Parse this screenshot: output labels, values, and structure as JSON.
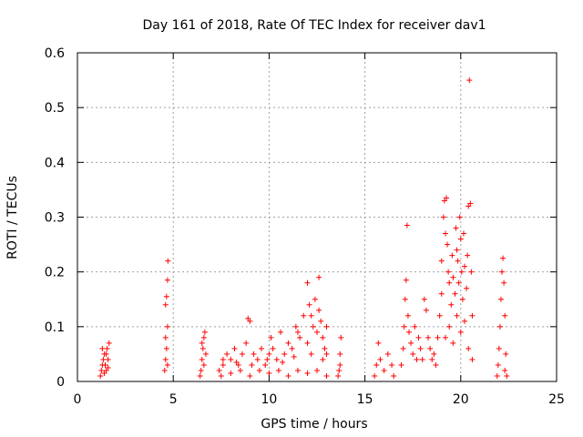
{
  "chart_data": {
    "type": "scatter",
    "title": "Day 161 of 2018, Rate Of TEC Index for receiver dav1",
    "xlabel": "GPS time / hours",
    "ylabel": "ROTI / TECUs",
    "xlim": [
      0,
      25
    ],
    "ylim": [
      0,
      0.6
    ],
    "xticks": [
      0,
      5,
      10,
      15,
      20,
      25
    ],
    "xtick_labels": [
      "0",
      "5",
      "10",
      "15",
      "20",
      "25"
    ],
    "yticks": [
      0,
      0.1,
      0.2,
      0.3,
      0.4,
      0.5,
      0.6
    ],
    "ytick_labels": [
      "0",
      "0.1",
      "0.2",
      "0.3",
      "0.4",
      "0.5",
      "0.6"
    ],
    "grid": true,
    "marker": "+",
    "color": "#ff0000",
    "series": [
      {
        "name": "ROTI",
        "points": [
          [
            1.2,
            0.01
          ],
          [
            1.25,
            0.02
          ],
          [
            1.3,
            0.03
          ],
          [
            1.35,
            0.04
          ],
          [
            1.4,
            0.05
          ],
          [
            1.45,
            0.03
          ],
          [
            1.5,
            0.02
          ],
          [
            1.55,
            0.06
          ],
          [
            1.6,
            0.04
          ],
          [
            1.65,
            0.07
          ],
          [
            1.3,
            0.06
          ],
          [
            1.5,
            0.05
          ],
          [
            1.4,
            0.015
          ],
          [
            1.6,
            0.025
          ],
          [
            4.55,
            0.02
          ],
          [
            4.6,
            0.04
          ],
          [
            4.65,
            0.06
          ],
          [
            4.7,
            0.1
          ],
          [
            4.6,
            0.14
          ],
          [
            4.65,
            0.155
          ],
          [
            4.7,
            0.185
          ],
          [
            4.72,
            0.22
          ],
          [
            4.6,
            0.08
          ],
          [
            4.7,
            0.03
          ],
          [
            6.4,
            0.01
          ],
          [
            6.45,
            0.02
          ],
          [
            6.5,
            0.04
          ],
          [
            6.55,
            0.06
          ],
          [
            6.6,
            0.08
          ],
          [
            6.65,
            0.09
          ],
          [
            6.7,
            0.05
          ],
          [
            6.6,
            0.03
          ],
          [
            6.5,
            0.07
          ],
          [
            7.4,
            0.02
          ],
          [
            7.6,
            0.03
          ],
          [
            7.8,
            0.05
          ],
          [
            8.0,
            0.04
          ],
          [
            8.2,
            0.06
          ],
          [
            8.4,
            0.03
          ],
          [
            8.6,
            0.05
          ],
          [
            8.8,
            0.07
          ],
          [
            8.9,
            0.115
          ],
          [
            9.0,
            0.11
          ],
          [
            9.2,
            0.05
          ],
          [
            9.4,
            0.04
          ],
          [
            9.6,
            0.06
          ],
          [
            9.8,
            0.03
          ],
          [
            10.0,
            0.05
          ],
          [
            10.1,
            0.08
          ],
          [
            10.2,
            0.06
          ],
          [
            10.4,
            0.04
          ],
          [
            10.6,
            0.09
          ],
          [
            10.8,
            0.05
          ],
          [
            11.0,
            0.07
          ],
          [
            11.2,
            0.06
          ],
          [
            11.4,
            0.1
          ],
          [
            11.5,
            0.09
          ],
          [
            11.6,
            0.08
          ],
          [
            11.8,
            0.12
          ],
          [
            12.0,
            0.07
          ],
          [
            12.0,
            0.18
          ],
          [
            12.1,
            0.14
          ],
          [
            12.2,
            0.12
          ],
          [
            12.3,
            0.1
          ],
          [
            12.4,
            0.15
          ],
          [
            12.5,
            0.09
          ],
          [
            12.6,
            0.13
          ],
          [
            12.6,
            0.19
          ],
          [
            12.7,
            0.11
          ],
          [
            12.8,
            0.08
          ],
          [
            12.9,
            0.06
          ],
          [
            13.0,
            0.05
          ],
          [
            13.0,
            0.1
          ],
          [
            7.5,
            0.01
          ],
          [
            8.0,
            0.015
          ],
          [
            8.5,
            0.02
          ],
          [
            9.0,
            0.01
          ],
          [
            9.5,
            0.02
          ],
          [
            10.0,
            0.015
          ],
          [
            10.5,
            0.02
          ],
          [
            11.0,
            0.01
          ],
          [
            11.5,
            0.02
          ],
          [
            12.0,
            0.015
          ],
          [
            12.5,
            0.02
          ],
          [
            13.0,
            0.01
          ],
          [
            7.6,
            0.04
          ],
          [
            8.3,
            0.035
          ],
          [
            9.1,
            0.03
          ],
          [
            9.9,
            0.04
          ],
          [
            10.7,
            0.035
          ],
          [
            11.3,
            0.045
          ],
          [
            12.2,
            0.05
          ],
          [
            12.8,
            0.04
          ],
          [
            13.6,
            0.01
          ],
          [
            13.65,
            0.02
          ],
          [
            13.7,
            0.03
          ],
          [
            13.75,
            0.08
          ],
          [
            13.7,
            0.05
          ],
          [
            15.5,
            0.01
          ],
          [
            15.6,
            0.03
          ],
          [
            15.7,
            0.07
          ],
          [
            15.8,
            0.04
          ],
          [
            16.0,
            0.02
          ],
          [
            16.2,
            0.05
          ],
          [
            16.4,
            0.03
          ],
          [
            16.5,
            0.01
          ],
          [
            16.9,
            0.03
          ],
          [
            17.0,
            0.06
          ],
          [
            17.05,
            0.1
          ],
          [
            17.1,
            0.15
          ],
          [
            17.15,
            0.185
          ],
          [
            17.2,
            0.285
          ],
          [
            17.25,
            0.12
          ],
          [
            17.3,
            0.09
          ],
          [
            17.4,
            0.07
          ],
          [
            17.5,
            0.05
          ],
          [
            17.6,
            0.1
          ],
          [
            17.7,
            0.04
          ],
          [
            17.8,
            0.08
          ],
          [
            17.9,
            0.06
          ],
          [
            18.0,
            0.04
          ],
          [
            18.1,
            0.15
          ],
          [
            18.2,
            0.13
          ],
          [
            18.3,
            0.08
          ],
          [
            18.4,
            0.06
          ],
          [
            18.5,
            0.04
          ],
          [
            18.6,
            0.05
          ],
          [
            18.7,
            0.03
          ],
          [
            18.8,
            0.08
          ],
          [
            18.9,
            0.12
          ],
          [
            19.0,
            0.16
          ],
          [
            19.0,
            0.22
          ],
          [
            19.1,
            0.3
          ],
          [
            19.15,
            0.33
          ],
          [
            19.2,
            0.27
          ],
          [
            19.25,
            0.335
          ],
          [
            19.3,
            0.25
          ],
          [
            19.35,
            0.2
          ],
          [
            19.4,
            0.18
          ],
          [
            19.5,
            0.14
          ],
          [
            19.55,
            0.23
          ],
          [
            19.6,
            0.19
          ],
          [
            19.7,
            0.16
          ],
          [
            19.75,
            0.28
          ],
          [
            19.8,
            0.24
          ],
          [
            19.85,
            0.22
          ],
          [
            19.9,
            0.18
          ],
          [
            19.95,
            0.3
          ],
          [
            20.0,
            0.26
          ],
          [
            20.05,
            0.2
          ],
          [
            20.1,
            0.15
          ],
          [
            20.15,
            0.27
          ],
          [
            20.2,
            0.21
          ],
          [
            20.3,
            0.17
          ],
          [
            20.35,
            0.23
          ],
          [
            20.4,
            0.32
          ],
          [
            20.45,
            0.55
          ],
          [
            20.5,
            0.325
          ],
          [
            20.55,
            0.2
          ],
          [
            20.6,
            0.12
          ],
          [
            19.2,
            0.08
          ],
          [
            19.4,
            0.1
          ],
          [
            19.6,
            0.07
          ],
          [
            19.8,
            0.12
          ],
          [
            20.0,
            0.09
          ],
          [
            20.2,
            0.11
          ],
          [
            20.4,
            0.06
          ],
          [
            20.6,
            0.04
          ],
          [
            21.9,
            0.01
          ],
          [
            21.95,
            0.03
          ],
          [
            22.0,
            0.06
          ],
          [
            22.05,
            0.1
          ],
          [
            22.1,
            0.15
          ],
          [
            22.15,
            0.2
          ],
          [
            22.2,
            0.225
          ],
          [
            22.25,
            0.18
          ],
          [
            22.3,
            0.12
          ],
          [
            22.35,
            0.05
          ],
          [
            22.3,
            0.02
          ],
          [
            22.4,
            0.01
          ]
        ]
      }
    ]
  }
}
